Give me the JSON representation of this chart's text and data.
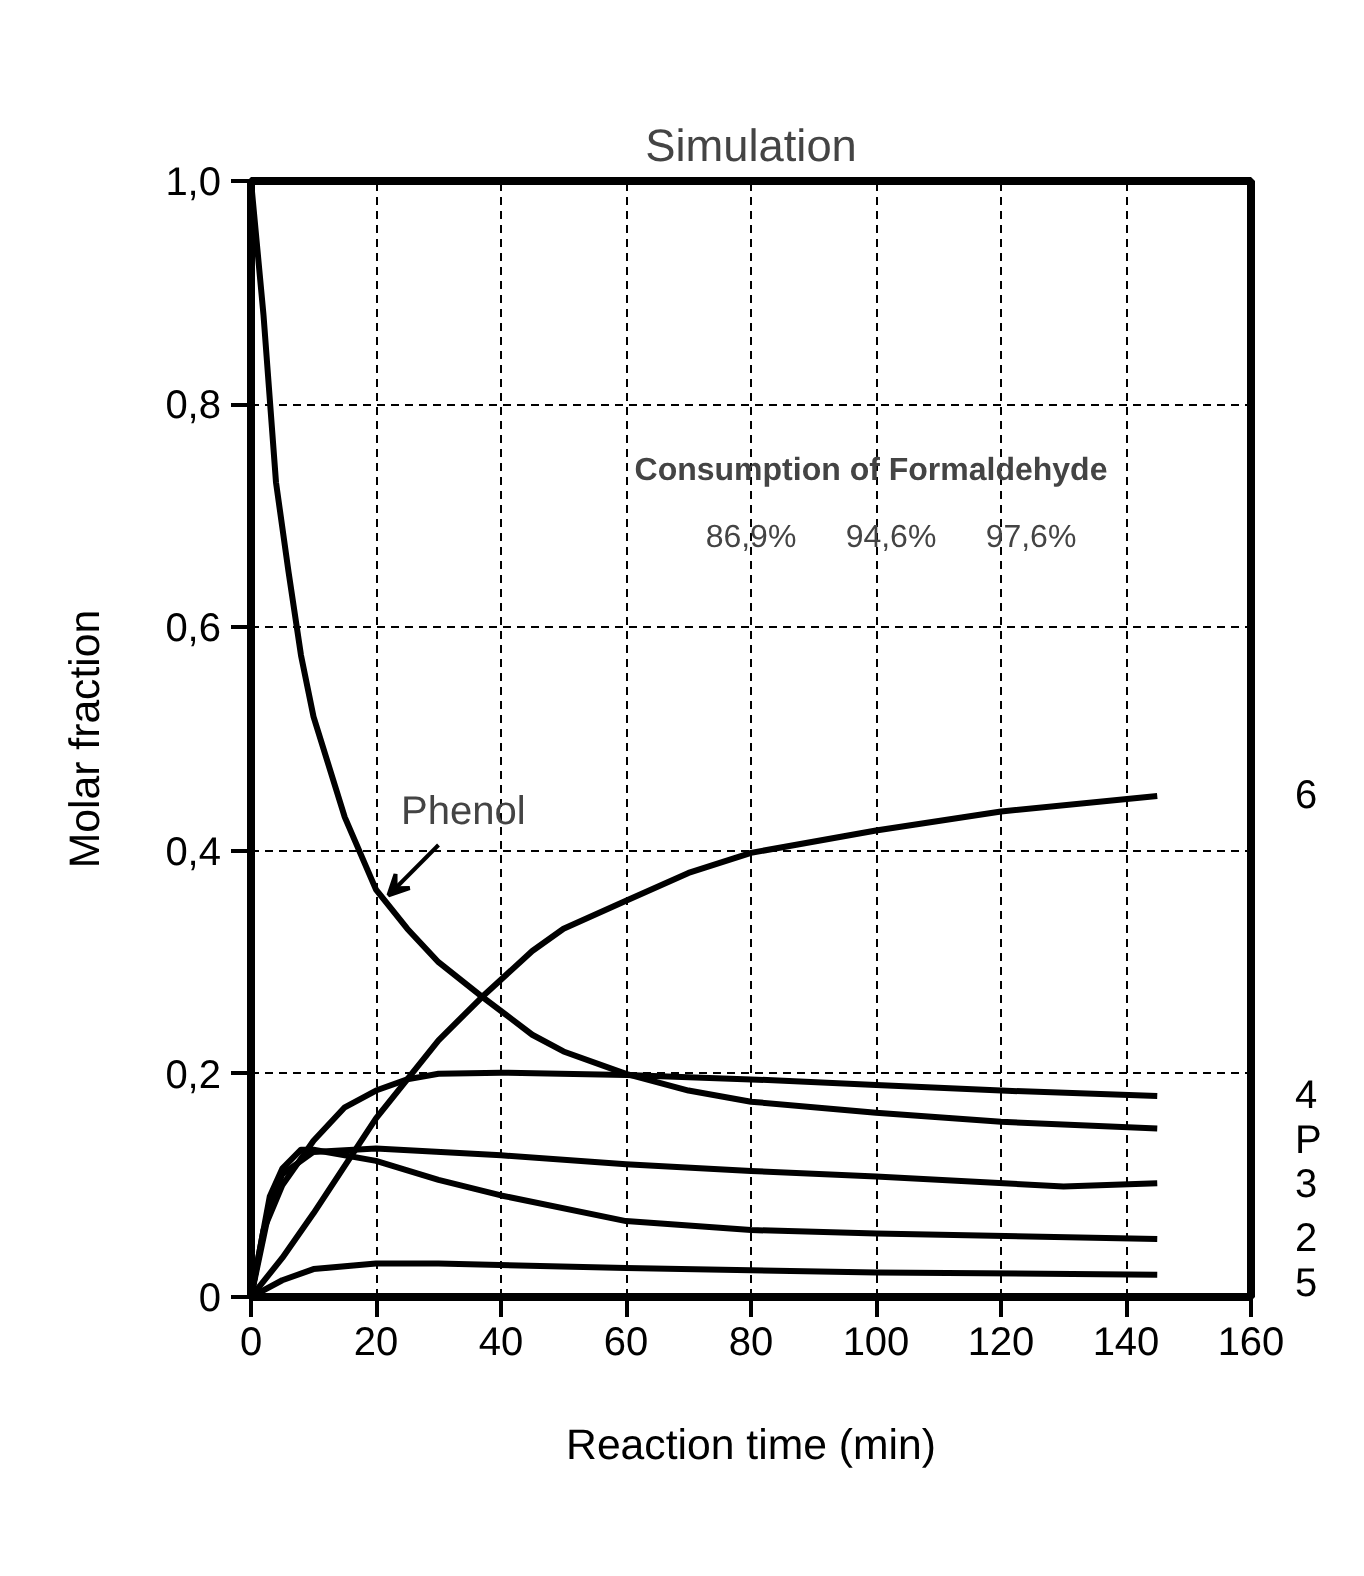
{
  "chart_data": {
    "type": "line",
    "title": "Simulation",
    "xlabel": "Reaction time (min)",
    "ylabel": "Molar fraction",
    "xlim": [
      0,
      160
    ],
    "ylim": [
      0,
      1
    ],
    "xticks": [
      0,
      20,
      40,
      60,
      80,
      100,
      120,
      140,
      160
    ],
    "yticks": [
      {
        "value": 0,
        "label": "0"
      },
      {
        "value": 0.2,
        "label": "0,2"
      },
      {
        "value": 0.4,
        "label": "0,4"
      },
      {
        "value": 0.6,
        "label": "0,6"
      },
      {
        "value": 0.8,
        "label": "0,8"
      },
      {
        "value": 1,
        "label": "1,0"
      }
    ],
    "grid": true,
    "marker": "none",
    "line_style": "solid",
    "series": [
      {
        "name": "6",
        "color": "#000000",
        "x": [
          0,
          5,
          10,
          20,
          30,
          37,
          45,
          50,
          60,
          70,
          80,
          100,
          120,
          145
        ],
        "values": [
          0,
          0.035,
          0.075,
          0.16,
          0.23,
          0.269,
          0.31,
          0.33,
          0.355,
          0.38,
          0.398,
          0.418,
          0.435,
          0.449
        ]
      },
      {
        "name": "4",
        "color": "#000000",
        "x": [
          0,
          2,
          5,
          10,
          15,
          20,
          25,
          30,
          40,
          60,
          80,
          100,
          120,
          145
        ],
        "values": [
          0,
          0.06,
          0.1,
          0.14,
          0.17,
          0.185,
          0.195,
          0.2,
          0.201,
          0.199,
          0.195,
          0.19,
          0.185,
          0.18
        ]
      },
      {
        "name": "P",
        "color": "#000000",
        "x": [
          0,
          2,
          4,
          6,
          8,
          10,
          15,
          20,
          25,
          30,
          37,
          45,
          50,
          60,
          70,
          80,
          100,
          120,
          145
        ],
        "values": [
          1,
          0.88,
          0.73,
          0.65,
          0.575,
          0.52,
          0.43,
          0.365,
          0.33,
          0.3,
          0.269,
          0.235,
          0.22,
          0.2,
          0.185,
          0.175,
          0.165,
          0.157,
          0.151
        ]
      },
      {
        "name": "3",
        "color": "#000000",
        "x": [
          0,
          3,
          5,
          10,
          20,
          40,
          60,
          80,
          100,
          130,
          145
        ],
        "values": [
          0,
          0.08,
          0.11,
          0.13,
          0.133,
          0.127,
          0.119,
          0.113,
          0.108,
          0.099,
          0.102
        ]
      },
      {
        "name": "2",
        "color": "#000000",
        "x": [
          0,
          3,
          5,
          8,
          10,
          20,
          30,
          40,
          60,
          80,
          100,
          145
        ],
        "values": [
          0,
          0.09,
          0.115,
          0.132,
          0.132,
          0.122,
          0.105,
          0.091,
          0.068,
          0.06,
          0.057,
          0.052
        ]
      },
      {
        "name": "5",
        "color": "#000000",
        "x": [
          0,
          5,
          10,
          20,
          30,
          60,
          100,
          145
        ],
        "values": [
          0,
          0.015,
          0.025,
          0.03,
          0.03,
          0.026,
          0.022,
          0.02
        ]
      }
    ],
    "annotations": [
      "Consumption of Formaldehyde",
      "86,9%",
      "94,6%",
      "97,6%",
      {
        "text": "Phenol",
        "x": 22,
        "y": 0.36
      }
    ]
  }
}
